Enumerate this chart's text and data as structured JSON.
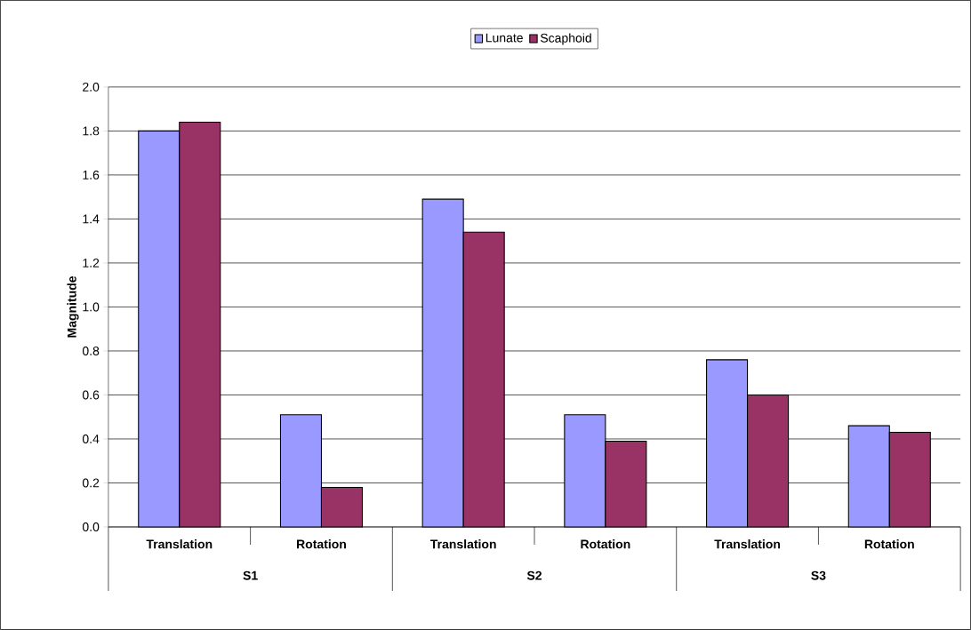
{
  "chart_data": {
    "type": "bar",
    "ylabel": "Magnitude",
    "categories": [
      "Translation",
      "Rotation",
      "Translation",
      "Rotation",
      "Translation",
      "Rotation"
    ],
    "series": [
      {
        "name": "Lunate",
        "color": "#9999ff",
        "values": [
          1.8,
          0.51,
          1.49,
          0.51,
          0.76,
          0.46
        ]
      },
      {
        "name": "Scaphoid",
        "color": "#993366",
        "values": [
          1.84,
          0.18,
          1.34,
          0.39,
          0.6,
          0.43
        ]
      }
    ],
    "annotations": [
      "S1",
      "S2",
      "S3"
    ],
    "ylim": [
      0,
      2.0
    ],
    "yticks": [
      {
        "value": 0,
        "label": "0.0"
      },
      {
        "value": 0.2,
        "label": "0.2"
      },
      {
        "value": 0.4,
        "label": "0.4"
      },
      {
        "value": 0.6,
        "label": "0.6"
      },
      {
        "value": 0.8,
        "label": "0.8"
      },
      {
        "value": 1.0,
        "label": "1.0"
      },
      {
        "value": 1.2,
        "label": "1.2"
      },
      {
        "value": 1.4,
        "label": "1.4"
      },
      {
        "value": 1.6,
        "label": "1.6"
      },
      {
        "value": 1.8,
        "label": "1.8"
      },
      {
        "value": 2.0,
        "label": "2.0"
      }
    ],
    "grid": "y",
    "legend": "top"
  }
}
